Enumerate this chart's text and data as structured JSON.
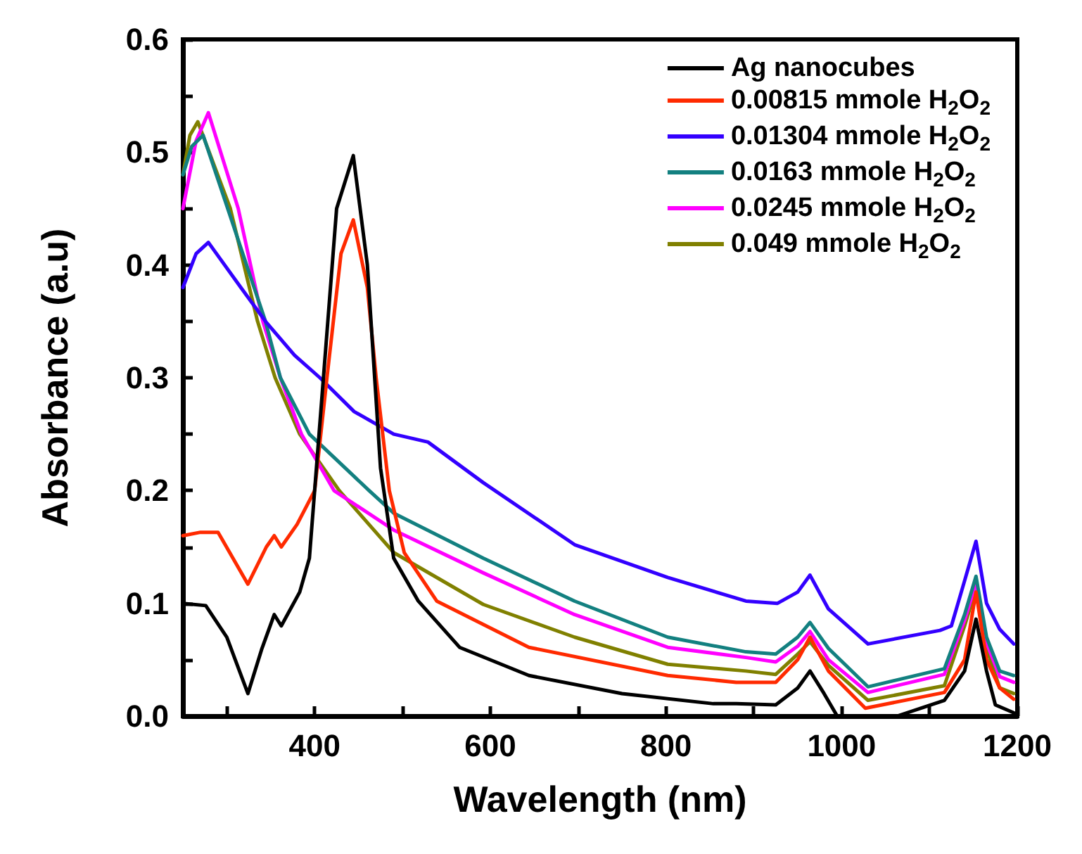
{
  "chart_data": {
    "type": "line",
    "xlabel": "Wavelength (nm)",
    "ylabel": "Absorbance (a.u)",
    "xlim": [
      250,
      1200
    ],
    "ylim": [
      0,
      0.6
    ],
    "xticks": [
      {
        "value": 300,
        "label": null
      },
      400,
      {
        "value": 500,
        "label": null
      },
      600,
      {
        "value": 700,
        "label": null
      },
      800,
      {
        "value": 900,
        "label": null
      },
      1000,
      {
        "value": 1100,
        "label": null
      },
      1200
    ],
    "yticks": [
      {
        "value": 0,
        "label": "0.0"
      },
      {
        "value": 0.05,
        "label": null
      },
      0.1,
      {
        "value": 0.15,
        "label": null
      },
      0.2,
      {
        "value": 0.25,
        "label": null
      },
      0.3,
      {
        "value": 0.35,
        "label": null
      },
      0.4,
      {
        "value": 0.45,
        "label": null
      },
      0.5,
      {
        "value": 0.55,
        "label": null
      },
      0.6
    ],
    "legend": "top right",
    "grid": false,
    "marker": "none",
    "line_style": "solid",
    "series": [
      {
        "name": "Ag nanocubes",
        "color": "#000000",
        "x": [
          250,
          276,
          300,
          324,
          340,
          354,
          362,
          383,
          394,
          410,
          425,
          444,
          460,
          475,
          490,
          518,
          565,
          644,
          750,
          854,
          880,
          925,
          950,
          964,
          980,
          995,
          1063,
          1117,
          1140,
          1153,
          1165,
          1175,
          1196
        ],
        "values": [
          0.1,
          0.098,
          0.07,
          0.02,
          0.06,
          0.09,
          0.08,
          0.11,
          0.14,
          0.3,
          0.45,
          0.497,
          0.4,
          0.22,
          0.14,
          0.102,
          0.061,
          0.036,
          0.02,
          0.011,
          0.011,
          0.01,
          0.025,
          0.04,
          0.02,
          0.0,
          0.0,
          0.014,
          0.04,
          0.086,
          0.04,
          0.01,
          0.003
        ]
      },
      {
        "name": "0.00815 mmole H$_{2}$O$_{2}$",
        "color": "#ff2a00",
        "x": [
          250,
          270,
          290,
          324,
          345,
          354,
          362,
          380,
          400,
          414,
          430,
          444,
          460,
          470,
          485,
          502,
          539,
          644,
          802,
          880,
          925,
          950,
          964,
          985,
          1027,
          1117,
          1140,
          1153,
          1165,
          1180,
          1196
        ],
        "values": [
          0.16,
          0.163,
          0.163,
          0.117,
          0.15,
          0.16,
          0.15,
          0.17,
          0.2,
          0.3,
          0.41,
          0.44,
          0.38,
          0.3,
          0.2,
          0.145,
          0.102,
          0.061,
          0.036,
          0.03,
          0.03,
          0.05,
          0.07,
          0.04,
          0.007,
          0.021,
          0.05,
          0.11,
          0.05,
          0.025,
          0.015
        ]
      },
      {
        "name": "0.01304 mmole H$_{2}$O$_{2}$",
        "color": "#3300ff",
        "x": [
          250,
          265,
          279,
          316,
          344,
          377,
          406,
          445,
          490,
          529,
          592,
          696,
          802,
          891,
          927,
          950,
          964,
          985,
          1030,
          1112,
          1125,
          1140,
          1153,
          1165,
          1180,
          1196
        ],
        "values": [
          0.38,
          0.41,
          0.42,
          0.38,
          0.35,
          0.32,
          0.3,
          0.27,
          0.25,
          0.243,
          0.207,
          0.152,
          0.123,
          0.102,
          0.1,
          0.11,
          0.125,
          0.095,
          0.064,
          0.076,
          0.08,
          0.12,
          0.155,
          0.1,
          0.077,
          0.064
        ]
      },
      {
        "name": "0.0163 mmole H$_{2}$O$_{2}$",
        "color": "#138080",
        "x": [
          250,
          260,
          273,
          301,
          344,
          361,
          394,
          462,
          490,
          592,
          696,
          802,
          891,
          925,
          950,
          964,
          985,
          1030,
          1117,
          1140,
          1153,
          1165,
          1180,
          1196
        ],
        "values": [
          0.48,
          0.505,
          0.515,
          0.45,
          0.35,
          0.3,
          0.25,
          0.2,
          0.18,
          0.14,
          0.102,
          0.07,
          0.057,
          0.055,
          0.07,
          0.083,
          0.06,
          0.026,
          0.042,
          0.09,
          0.124,
          0.07,
          0.04,
          0.036
        ]
      },
      {
        "name": "0.0245 mmole H$_{2}$O$_{2}$",
        "color": "#ff00ff",
        "x": [
          250,
          265,
          279,
          313,
          341,
          361,
          385,
          422,
          490,
          592,
          696,
          802,
          891,
          925,
          950,
          964,
          985,
          1030,
          1117,
          1140,
          1153,
          1165,
          1180,
          1196
        ],
        "values": [
          0.45,
          0.51,
          0.535,
          0.45,
          0.35,
          0.3,
          0.25,
          0.2,
          0.165,
          0.127,
          0.09,
          0.061,
          0.052,
          0.048,
          0.062,
          0.075,
          0.05,
          0.021,
          0.037,
          0.085,
          0.118,
          0.065,
          0.035,
          0.03
        ]
      },
      {
        "name": "0.049 mmole H$_{2}$O$_{2}$",
        "color": "#808000",
        "x": [
          250,
          258,
          267,
          304,
          335,
          355,
          383,
          428,
          490,
          592,
          696,
          802,
          891,
          925,
          950,
          964,
          985,
          1030,
          1117,
          1140,
          1153,
          1165,
          1180,
          1196
        ],
        "values": [
          0.48,
          0.515,
          0.527,
          0.45,
          0.35,
          0.3,
          0.25,
          0.2,
          0.145,
          0.099,
          0.07,
          0.046,
          0.04,
          0.037,
          0.055,
          0.066,
          0.045,
          0.014,
          0.027,
          0.08,
          0.113,
          0.06,
          0.025,
          0.02
        ]
      }
    ]
  }
}
